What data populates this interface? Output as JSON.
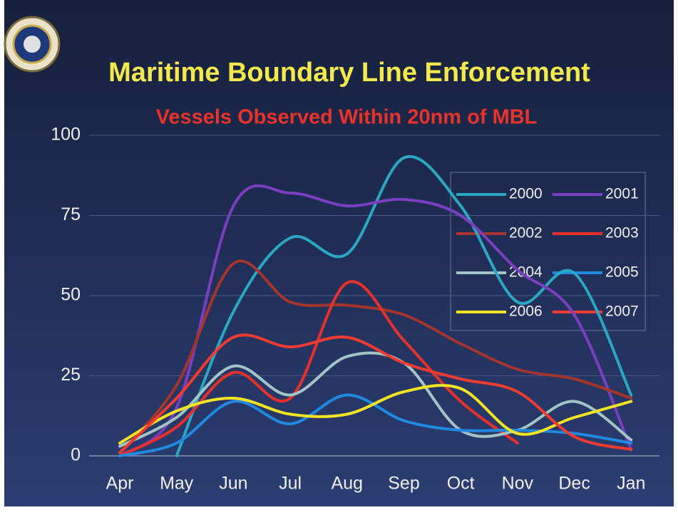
{
  "chart_data": {
    "type": "line",
    "title": "Maritime Boundary Line Enforcement",
    "subtitle": "Vessels Observed Within 20nm of MBL",
    "categories": [
      "Apr",
      "May",
      "Jun",
      "Jul",
      "Aug",
      "Sep",
      "Oct",
      "Nov",
      "Dec",
      "Jan"
    ],
    "series": [
      {
        "name": "2000",
        "color": "#2aa7c2",
        "values": [
          null,
          0,
          45,
          68,
          63,
          93,
          78,
          48,
          57,
          19
        ]
      },
      {
        "name": "2001",
        "color": "#7a3fc0",
        "values": [
          0,
          15,
          78,
          82,
          78,
          80,
          75,
          58,
          44,
          2
        ]
      },
      {
        "name": "2002",
        "color": "#a5352c",
        "values": [
          1,
          22,
          60,
          48,
          47,
          44,
          35,
          27,
          24,
          18
        ]
      },
      {
        "name": "2003",
        "color": "#e8302a",
        "values": [
          0,
          9,
          26,
          18,
          54,
          36,
          17,
          4,
          null,
          null
        ]
      },
      {
        "name": "2004",
        "color": "#a2c4c6",
        "values": [
          3,
          12,
          28,
          19,
          31,
          29,
          8,
          8,
          17,
          5
        ]
      },
      {
        "name": "2005",
        "color": "#1f8ae0",
        "values": [
          0,
          4,
          17,
          10,
          19,
          11,
          8,
          8,
          7,
          4
        ]
      },
      {
        "name": "2006",
        "color": "#f2e422",
        "values": [
          4,
          14,
          18,
          13,
          13,
          20,
          21,
          7,
          12,
          17
        ]
      },
      {
        "name": "2007",
        "color": "#f23b30",
        "values": [
          1,
          18,
          37,
          34,
          37,
          29,
          24,
          20,
          6,
          2
        ]
      }
    ],
    "ylim": [
      0,
      100
    ],
    "yticks": [
      0,
      25,
      50,
      75,
      100
    ],
    "grid": true,
    "legend": "upper right"
  }
}
